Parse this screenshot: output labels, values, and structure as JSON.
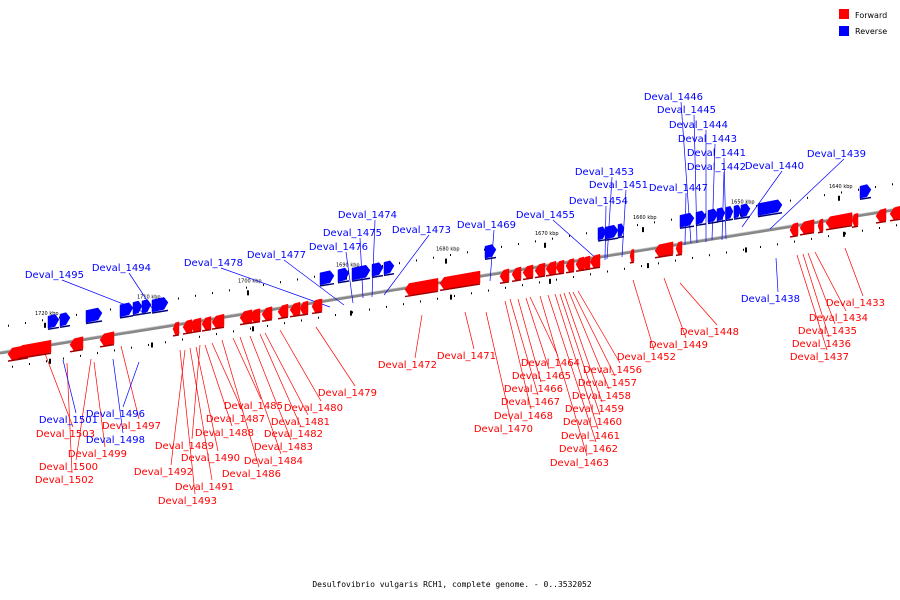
{
  "caption": "Desulfovibrio vulgaris RCH1, complete genome. - 0..3532052",
  "colors": {
    "forward": "#ff0000",
    "reverse": "#0000ff",
    "backbone": "#888888"
  },
  "legend": [
    {
      "strand": "forward",
      "label": "Forward"
    },
    {
      "strand": "reverse",
      "label": "Reverse"
    }
  ],
  "ticks": [
    "1720 kbp",
    "1710 kbp",
    "1700 kbp",
    "1690 kbp",
    "1680 kbp",
    "1670 kbp",
    "1660 kbp",
    "1650 kbp",
    "1640 kbp"
  ],
  "genes": [
    {
      "name": "Deval_1503",
      "strand": "forward"
    },
    {
      "name": "Deval_1502",
      "strand": "forward"
    },
    {
      "name": "Deval_1501",
      "strand": "reverse"
    },
    {
      "name": "Deval_1500",
      "strand": "forward"
    },
    {
      "name": "Deval_1499",
      "strand": "forward"
    },
    {
      "name": "Deval_1498",
      "strand": "reverse"
    },
    {
      "name": "Deval_1497",
      "strand": "forward"
    },
    {
      "name": "Deval_1496",
      "strand": "reverse"
    },
    {
      "name": "Deval_1495",
      "strand": "reverse"
    },
    {
      "name": "Deval_1494",
      "strand": "reverse"
    },
    {
      "name": "Deval_1493",
      "strand": "forward"
    },
    {
      "name": "Deval_1492",
      "strand": "forward"
    },
    {
      "name": "Deval_1491",
      "strand": "forward"
    },
    {
      "name": "Deval_1490",
      "strand": "forward"
    },
    {
      "name": "Deval_1489",
      "strand": "forward"
    },
    {
      "name": "Deval_1488",
      "strand": "forward"
    },
    {
      "name": "Deval_1487",
      "strand": "forward"
    },
    {
      "name": "Deval_1486",
      "strand": "forward"
    },
    {
      "name": "Deval_1485",
      "strand": "forward"
    },
    {
      "name": "Deval_1484",
      "strand": "forward"
    },
    {
      "name": "Deval_1483",
      "strand": "forward"
    },
    {
      "name": "Deval_1482",
      "strand": "forward"
    },
    {
      "name": "Deval_1481",
      "strand": "forward"
    },
    {
      "name": "Deval_1480",
      "strand": "forward"
    },
    {
      "name": "Deval_1479",
      "strand": "forward"
    },
    {
      "name": "Deval_1478",
      "strand": "reverse"
    },
    {
      "name": "Deval_1477",
      "strand": "reverse"
    },
    {
      "name": "Deval_1476",
      "strand": "reverse"
    },
    {
      "name": "Deval_1475",
      "strand": "reverse"
    },
    {
      "name": "Deval_1474",
      "strand": "reverse"
    },
    {
      "name": "Deval_1473",
      "strand": "reverse"
    },
    {
      "name": "Deval_1472",
      "strand": "forward"
    },
    {
      "name": "Deval_1471",
      "strand": "forward"
    },
    {
      "name": "Deval_1470",
      "strand": "forward"
    },
    {
      "name": "Deval_1469",
      "strand": "reverse"
    },
    {
      "name": "Deval_1468",
      "strand": "forward"
    },
    {
      "name": "Deval_1467",
      "strand": "forward"
    },
    {
      "name": "Deval_1466",
      "strand": "forward"
    },
    {
      "name": "Deval_1465",
      "strand": "forward"
    },
    {
      "name": "Deval_1464",
      "strand": "forward"
    },
    {
      "name": "Deval_1463",
      "strand": "forward"
    },
    {
      "name": "Deval_1462",
      "strand": "forward"
    },
    {
      "name": "Deval_1461",
      "strand": "forward"
    },
    {
      "name": "Deval_1460",
      "strand": "forward"
    },
    {
      "name": "Deval_1459",
      "strand": "forward"
    },
    {
      "name": "Deval_1458",
      "strand": "forward"
    },
    {
      "name": "Deval_1457",
      "strand": "forward"
    },
    {
      "name": "Deval_1456",
      "strand": "forward"
    },
    {
      "name": "Deval_1455",
      "strand": "reverse"
    },
    {
      "name": "Deval_1454",
      "strand": "reverse"
    },
    {
      "name": "Deval_1453",
      "strand": "reverse"
    },
    {
      "name": "Deval_1452",
      "strand": "forward"
    },
    {
      "name": "Deval_1451",
      "strand": "reverse"
    },
    {
      "name": "Deval_1449",
      "strand": "forward"
    },
    {
      "name": "Deval_1448",
      "strand": "forward"
    },
    {
      "name": "Deval_1447",
      "strand": "reverse"
    },
    {
      "name": "Deval_1446",
      "strand": "reverse"
    },
    {
      "name": "Deval_1445",
      "strand": "reverse"
    },
    {
      "name": "Deval_1444",
      "strand": "reverse"
    },
    {
      "name": "Deval_1443",
      "strand": "reverse"
    },
    {
      "name": "Deval_1442",
      "strand": "reverse"
    },
    {
      "name": "Deval_1441",
      "strand": "reverse"
    },
    {
      "name": "Deval_1440",
      "strand": "reverse"
    },
    {
      "name": "Deval_1439",
      "strand": "reverse"
    },
    {
      "name": "Deval_1438",
      "strand": "reverse"
    },
    {
      "name": "Deval_1437",
      "strand": "forward"
    },
    {
      "name": "Deval_1436",
      "strand": "forward"
    },
    {
      "name": "Deval_1435",
      "strand": "forward"
    },
    {
      "name": "Deval_1434",
      "strand": "forward"
    },
    {
      "name": "Deval_1433",
      "strand": "forward"
    }
  ]
}
